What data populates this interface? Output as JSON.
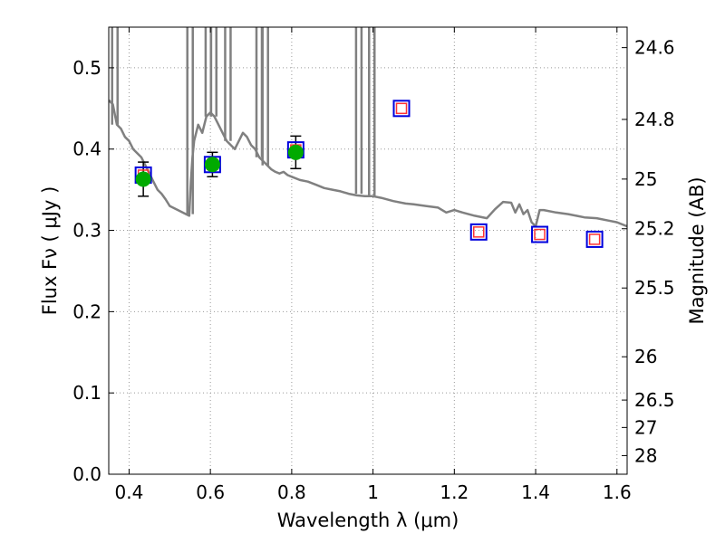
{
  "chart_data": {
    "type": "scatter",
    "title": "",
    "xlabel": "Wavelength  λ (μm)",
    "ylabel": "Flux  Fν  ( μJy )",
    "y2label": "Magnitude (AB)",
    "xlim": [
      0.35,
      1.625
    ],
    "ylim": [
      0.0,
      0.55
    ],
    "grid": true,
    "x_ticks": [
      0.4,
      0.6,
      0.8,
      1.0,
      1.2,
      1.4,
      1.6
    ],
    "x_tick_labels": [
      "0.4",
      "0.6",
      "0.8",
      "1",
      "1.2",
      "1.4",
      "1.6"
    ],
    "y_ticks": [
      0.0,
      0.1,
      0.2,
      0.3,
      0.4,
      0.5
    ],
    "y_tick_labels": [
      "0.0",
      "0.1",
      "0.2",
      "0.3",
      "0.4",
      "0.5"
    ],
    "y2_ticks": [
      {
        "label": "24.6",
        "flux": 0.5248
      },
      {
        "label": "24.8",
        "flux": 0.4365
      },
      {
        "label": "25",
        "flux": 0.3631
      },
      {
        "label": "25.2",
        "flux": 0.302
      },
      {
        "label": "25.5",
        "flux": 0.2291
      },
      {
        "label": "26",
        "flux": 0.1445
      },
      {
        "label": "26.5",
        "flux": 0.0912
      },
      {
        "label": "27",
        "flux": 0.0575
      },
      {
        "label": "28",
        "flux": 0.0229
      }
    ],
    "colors": {
      "model": "#808080",
      "observed": "#00aa00",
      "synthetic_outer": "#0000dd",
      "synthetic_inner": "#ff3333",
      "errorbar": "#000000",
      "grid": "#999999"
    },
    "series": [
      {
        "kind": "model_spectrum",
        "x": [
          0.35,
          0.36,
          0.37,
          0.38,
          0.39,
          0.4,
          0.41,
          0.42,
          0.43,
          0.44,
          0.45,
          0.46,
          0.47,
          0.48,
          0.49,
          0.5,
          0.52,
          0.54,
          0.548,
          0.552,
          0.556,
          0.56,
          0.57,
          0.58,
          0.59,
          0.6,
          0.61,
          0.62,
          0.63,
          0.64,
          0.65,
          0.66,
          0.67,
          0.68,
          0.69,
          0.7,
          0.71,
          0.72,
          0.73,
          0.74,
          0.75,
          0.76,
          0.77,
          0.78,
          0.79,
          0.8,
          0.82,
          0.84,
          0.86,
          0.88,
          0.9,
          0.92,
          0.94,
          0.96,
          0.98,
          1.0,
          1.02,
          1.05,
          1.08,
          1.1,
          1.13,
          1.16,
          1.18,
          1.2,
          1.22,
          1.25,
          1.28,
          1.3,
          1.32,
          1.34,
          1.35,
          1.36,
          1.37,
          1.38,
          1.39,
          1.4,
          1.41,
          1.42,
          1.45,
          1.48,
          1.5,
          1.52,
          1.55,
          1.58,
          1.6,
          1.625
        ],
        "y": [
          0.46,
          0.455,
          0.43,
          0.425,
          0.415,
          0.41,
          0.4,
          0.395,
          0.39,
          0.38,
          0.37,
          0.36,
          0.35,
          0.345,
          0.338,
          0.33,
          0.325,
          0.32,
          0.318,
          0.36,
          0.39,
          0.41,
          0.43,
          0.42,
          0.44,
          0.445,
          0.44,
          0.43,
          0.42,
          0.41,
          0.405,
          0.4,
          0.41,
          0.42,
          0.415,
          0.405,
          0.4,
          0.39,
          0.385,
          0.38,
          0.375,
          0.372,
          0.37,
          0.372,
          0.368,
          0.366,
          0.362,
          0.36,
          0.356,
          0.352,
          0.35,
          0.348,
          0.345,
          0.343,
          0.342,
          0.342,
          0.34,
          0.336,
          0.333,
          0.332,
          0.33,
          0.328,
          0.322,
          0.325,
          0.322,
          0.318,
          0.315,
          0.326,
          0.335,
          0.334,
          0.322,
          0.332,
          0.32,
          0.325,
          0.31,
          0.305,
          0.325,
          0.325,
          0.322,
          0.32,
          0.318,
          0.316,
          0.315,
          0.312,
          0.31,
          0.305
        ]
      },
      {
        "kind": "model_spikes",
        "x": [
          0.365,
          0.55,
          0.595,
          0.608,
          0.643,
          0.72,
          0.735,
          0.965,
          0.997
        ],
        "y_base": [
          0.43,
          0.32,
          0.44,
          0.44,
          0.41,
          0.39,
          0.38,
          0.345,
          0.342
        ]
      },
      {
        "kind": "observed",
        "x": [
          0.435,
          0.605,
          0.81
        ],
        "y": [
          0.363,
          0.381,
          0.396
        ],
        "yerr": [
          0.021,
          0.015,
          0.02
        ]
      },
      {
        "kind": "synthetic",
        "x": [
          0.435,
          0.605,
          0.81,
          1.07,
          1.26,
          1.41,
          1.545
        ],
        "y": [
          0.368,
          0.381,
          0.399,
          0.45,
          0.298,
          0.295,
          0.289
        ]
      }
    ]
  }
}
